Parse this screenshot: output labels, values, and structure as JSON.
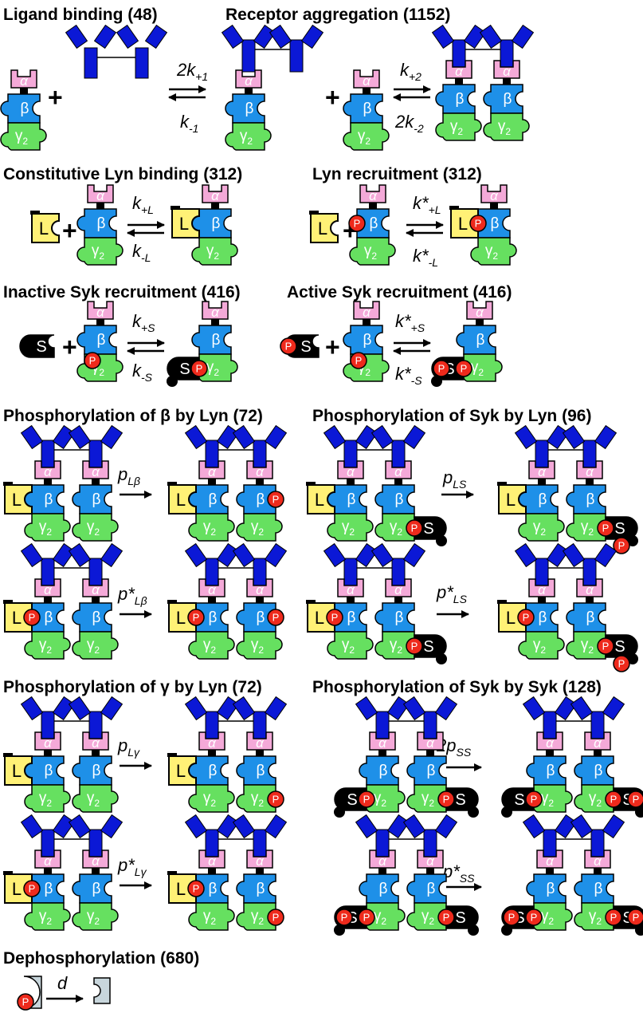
{
  "sections": {
    "ligand_binding": {
      "title": "Ligand binding (48)",
      "forward": "2k",
      "forward_sub": "+1",
      "reverse": "k",
      "reverse_sub": "-1"
    },
    "receptor_aggregation": {
      "title": "Receptor aggregation (1152)",
      "forward": "k",
      "forward_sub": "+2",
      "reverse": "2k",
      "reverse_sub": "-2"
    },
    "constitutive_lyn": {
      "title": "Constitutive Lyn binding (312)",
      "forward": "k",
      "forward_sub": "+L",
      "reverse": "k",
      "reverse_sub": "-L"
    },
    "lyn_recruitment": {
      "title": "Lyn recruitment (312)",
      "forward": "k*",
      "forward_sub": "+L",
      "reverse": "k*",
      "reverse_sub": "-L"
    },
    "inactive_syk": {
      "title": "Inactive Syk recruitment (416)",
      "forward": "k",
      "forward_sub": "+S",
      "reverse": "k",
      "reverse_sub": "-S"
    },
    "active_syk": {
      "title": "Active Syk recruitment (416)",
      "forward": "k*",
      "forward_sub": "+S",
      "reverse": "k*",
      "reverse_sub": "-S"
    },
    "phos_beta": {
      "title": "Phosphorylation of β by Lyn (72)",
      "rate1": "p",
      "rate1_sub": "Lβ",
      "rate2": "p*",
      "rate2_sub": "Lβ"
    },
    "phos_syk_lyn": {
      "title": "Phosphorylation of Syk by Lyn (96)",
      "rate1": "p",
      "rate1_sub": "LS",
      "rate2": "p*",
      "rate2_sub": "LS"
    },
    "phos_gamma": {
      "title": "Phosphorylation of γ by Lyn (72)",
      "rate1": "p",
      "rate1_sub": "Lγ",
      "rate2": "p*",
      "rate2_sub": "Lγ"
    },
    "phos_syk_syk": {
      "title": "Phosphorylation of Syk by Syk (128)",
      "rate1": "2p",
      "rate1_sub": "SS",
      "rate2": "p*",
      "rate2_sub": "SS"
    },
    "dephos": {
      "title": "Dephosphorylation (680)",
      "rate": "d"
    }
  },
  "labels": {
    "alpha": "α",
    "beta": "β",
    "gamma": "γ",
    "gamma_sub": "2",
    "lyn": "L",
    "syk": "S",
    "phospho": "P",
    "plus": "+"
  },
  "colors": {
    "alpha": "#f4a9d8",
    "beta": "#1e90e8",
    "gamma": "#66e060",
    "lyn": "#fff176",
    "syk": "#000000",
    "phospho": "#ee2a1c",
    "ligand": "#0b18d6",
    "dephos_site": "#c8d6dc"
  }
}
